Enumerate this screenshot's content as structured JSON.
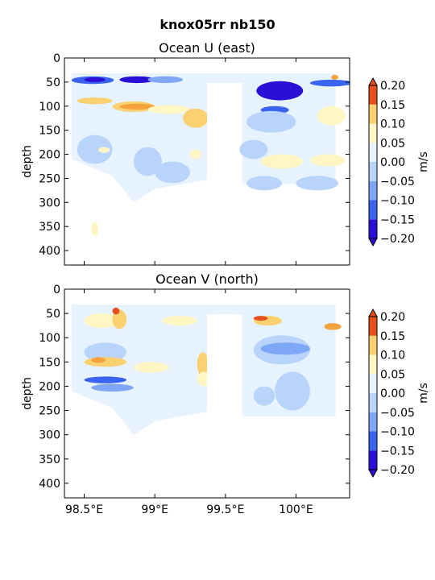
{
  "figure": {
    "suptitle": "knox05rr nb150",
    "shared_x_ticks": [
      "98.5°E",
      "99°E",
      "99.5°E",
      "100°E"
    ]
  },
  "chart_data": [
    {
      "type": "heatmap",
      "title": "Ocean U (east)",
      "xlabel": "",
      "ylabel": "depth",
      "x_range": [
        98.36,
        100.38
      ],
      "ylim": [
        430,
        0
      ],
      "x_ticks": [
        98.5,
        99.0,
        99.5,
        100.0
      ],
      "x_tick_labels": [
        "98.5°E",
        "99°E",
        "99.5°E",
        "100°E"
      ],
      "y_ticks": [
        0,
        50,
        100,
        150,
        200,
        250,
        300,
        350,
        400
      ],
      "y_tick_labels": [
        "0",
        "50",
        "100",
        "150",
        "200",
        "250",
        "300",
        "350",
        "400"
      ],
      "colorbar": {
        "label": "m/s",
        "levels": [
          -0.2,
          -0.15,
          -0.1,
          -0.05,
          0.0,
          0.05,
          0.1,
          0.15,
          0.2
        ],
        "tick_labels": [
          "−0.20",
          "−0.15",
          "−0.10",
          "−0.05",
          "0.00",
          "0.05",
          "0.10",
          "0.15",
          "0.20"
        ],
        "extend": "both"
      },
      "fields": [
        {
          "x": 98.41,
          "y": 38,
          "w": 0.3,
          "h": 16,
          "level": -0.15
        },
        {
          "x": 98.5,
          "y": 40,
          "w": 0.15,
          "h": 10,
          "level": -0.2
        },
        {
          "x": 98.75,
          "y": 38,
          "w": 0.25,
          "h": 14,
          "level": -0.2
        },
        {
          "x": 98.95,
          "y": 38,
          "w": 0.25,
          "h": 14,
          "level": -0.1
        },
        {
          "x": 98.45,
          "y": 82,
          "w": 0.25,
          "h": 14,
          "level": 0.1
        },
        {
          "x": 98.7,
          "y": 90,
          "w": 0.3,
          "h": 22,
          "level": 0.1
        },
        {
          "x": 98.75,
          "y": 95,
          "w": 0.25,
          "h": 12,
          "level": 0.15
        },
        {
          "x": 98.95,
          "y": 98,
          "w": 0.3,
          "h": 18,
          "level": 0.05
        },
        {
          "x": 99.2,
          "y": 105,
          "w": 0.18,
          "h": 40,
          "level": 0.1
        },
        {
          "x": 98.45,
          "y": 160,
          "w": 0.25,
          "h": 60,
          "level": -0.05
        },
        {
          "x": 98.6,
          "y": 185,
          "w": 0.08,
          "h": 12,
          "level": 0.05
        },
        {
          "x": 98.85,
          "y": 185,
          "w": 0.2,
          "h": 60,
          "level": -0.05
        },
        {
          "x": 99.0,
          "y": 215,
          "w": 0.25,
          "h": 45,
          "level": -0.05
        },
        {
          "x": 99.25,
          "y": 190,
          "w": 0.08,
          "h": 20,
          "level": 0.05
        },
        {
          "x": 98.55,
          "y": 340,
          "w": 0.05,
          "h": 30,
          "level": 0.05
        },
        {
          "x": 99.72,
          "y": 48,
          "w": 0.33,
          "h": 40,
          "level": -0.2
        },
        {
          "x": 99.75,
          "y": 100,
          "w": 0.2,
          "h": 16,
          "level": -0.15
        },
        {
          "x": 99.65,
          "y": 110,
          "w": 0.35,
          "h": 45,
          "level": -0.05
        },
        {
          "x": 100.1,
          "y": 45,
          "w": 0.3,
          "h": 14,
          "level": -0.15
        },
        {
          "x": 100.15,
          "y": 100,
          "w": 0.2,
          "h": 40,
          "level": 0.05
        },
        {
          "x": 99.75,
          "y": 200,
          "w": 0.3,
          "h": 30,
          "level": 0.05
        },
        {
          "x": 100.1,
          "y": 200,
          "w": 0.25,
          "h": 25,
          "level": 0.05
        },
        {
          "x": 99.6,
          "y": 170,
          "w": 0.2,
          "h": 40,
          "level": -0.05
        },
        {
          "x": 100.0,
          "y": 245,
          "w": 0.3,
          "h": 30,
          "level": -0.05
        },
        {
          "x": 99.65,
          "y": 245,
          "w": 0.25,
          "h": 30,
          "level": -0.05
        },
        {
          "x": 100.25,
          "y": 35,
          "w": 0.05,
          "h": 10,
          "level": 0.15
        }
      ]
    },
    {
      "type": "heatmap",
      "title": "Ocean V (north)",
      "xlabel": "",
      "ylabel": "depth",
      "x_range": [
        98.36,
        100.38
      ],
      "ylim": [
        430,
        0
      ],
      "x_ticks": [
        98.5,
        99.0,
        99.5,
        100.0
      ],
      "x_tick_labels": [
        "98.5°E",
        "99°E",
        "99.5°E",
        "100°E"
      ],
      "y_ticks": [
        0,
        50,
        100,
        150,
        200,
        250,
        300,
        350,
        400
      ],
      "y_tick_labels": [
        "0",
        "50",
        "100",
        "150",
        "200",
        "250",
        "300",
        "350",
        "400"
      ],
      "colorbar": {
        "label": "m/s",
        "levels": [
          -0.2,
          -0.15,
          -0.1,
          -0.05,
          0.0,
          0.05,
          0.1,
          0.15,
          0.2
        ],
        "tick_labels": [
          "−0.20",
          "−0.15",
          "−0.10",
          "−0.05",
          "0.00",
          "0.05",
          "0.10",
          "0.15",
          "0.20"
        ],
        "extend": "both"
      },
      "fields": [
        {
          "x": 98.5,
          "y": 50,
          "w": 0.25,
          "h": 30,
          "level": 0.05
        },
        {
          "x": 98.7,
          "y": 42,
          "w": 0.1,
          "h": 40,
          "level": 0.1
        },
        {
          "x": 98.7,
          "y": 38,
          "w": 0.05,
          "h": 14,
          "level": 0.2
        },
        {
          "x": 99.05,
          "y": 55,
          "w": 0.25,
          "h": 20,
          "level": 0.05
        },
        {
          "x": 98.5,
          "y": 110,
          "w": 0.3,
          "h": 40,
          "level": -0.05
        },
        {
          "x": 98.5,
          "y": 140,
          "w": 0.3,
          "h": 20,
          "level": 0.1
        },
        {
          "x": 98.55,
          "y": 140,
          "w": 0.1,
          "h": 12,
          "level": 0.15
        },
        {
          "x": 98.85,
          "y": 150,
          "w": 0.25,
          "h": 22,
          "level": 0.05
        },
        {
          "x": 98.5,
          "y": 180,
          "w": 0.3,
          "h": 14,
          "level": -0.15
        },
        {
          "x": 98.55,
          "y": 195,
          "w": 0.3,
          "h": 16,
          "level": -0.1
        },
        {
          "x": 99.3,
          "y": 130,
          "w": 0.08,
          "h": 50,
          "level": 0.1
        },
        {
          "x": 99.3,
          "y": 170,
          "w": 0.1,
          "h": 30,
          "level": 0.05
        },
        {
          "x": 98.9,
          "y": 205,
          "w": 0.3,
          "h": 60,
          "level": 0.0
        },
        {
          "x": 99.7,
          "y": 55,
          "w": 0.2,
          "h": 20,
          "level": 0.1
        },
        {
          "x": 99.7,
          "y": 55,
          "w": 0.1,
          "h": 10,
          "level": 0.2
        },
        {
          "x": 99.7,
          "y": 95,
          "w": 0.4,
          "h": 60,
          "level": -0.05
        },
        {
          "x": 99.75,
          "y": 110,
          "w": 0.35,
          "h": 25,
          "level": -0.1
        },
        {
          "x": 100.2,
          "y": 70,
          "w": 0.12,
          "h": 14,
          "level": 0.15
        },
        {
          "x": 99.85,
          "y": 170,
          "w": 0.25,
          "h": 80,
          "level": -0.05
        },
        {
          "x": 99.7,
          "y": 200,
          "w": 0.15,
          "h": 40,
          "level": -0.05
        }
      ]
    }
  ]
}
